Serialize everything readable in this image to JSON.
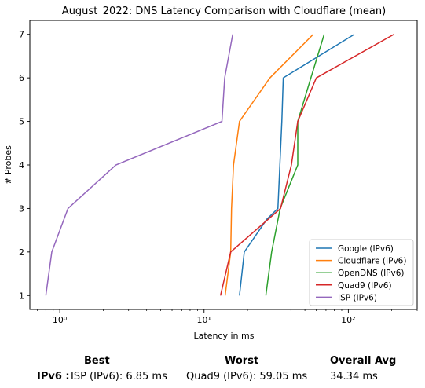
{
  "chart_data": {
    "type": "line",
    "title": "August_2022: DNS Latency Comparison with Cloudflare (mean)",
    "xlabel": "Latency in ms",
    "ylabel": "# Probes",
    "xscale": "log",
    "xlim": [
      0.62,
      300
    ],
    "ylim": [
      0.68,
      7.32
    ],
    "xticks": [
      {
        "value": 1,
        "label": "10⁰"
      },
      {
        "value": 10,
        "label": "10¹"
      },
      {
        "value": 100,
        "label": "10²"
      }
    ],
    "yticks": [
      1,
      2,
      3,
      4,
      5,
      6,
      7
    ],
    "grid": false,
    "legend_position": "lower-right",
    "series": [
      {
        "name": "Google (IPv6)",
        "color": "#1f77b4",
        "points": [
          [
            17.6,
            1
          ],
          [
            19.0,
            2
          ],
          [
            27.2,
            2.75
          ],
          [
            32.5,
            3
          ],
          [
            34.6,
            5
          ],
          [
            35.4,
            6
          ],
          [
            110.0,
            7
          ]
        ]
      },
      {
        "name": "Cloudflare (IPv6)",
        "color": "#ff7f0e",
        "points": [
          [
            14.0,
            1
          ],
          [
            15.3,
            2
          ],
          [
            15.5,
            3
          ],
          [
            16.0,
            4
          ],
          [
            17.6,
            5
          ],
          [
            28.6,
            6
          ],
          [
            57.1,
            7
          ]
        ]
      },
      {
        "name": "OpenDNS (IPv6)",
        "color": "#2ca02c",
        "points": [
          [
            26.8,
            1
          ],
          [
            29.4,
            2
          ],
          [
            33.7,
            3
          ],
          [
            44.6,
            4
          ],
          [
            44.6,
            5
          ],
          [
            55.0,
            6
          ],
          [
            68.0,
            7
          ]
        ]
      },
      {
        "name": "Quad9 (IPv6)",
        "color": "#d62728",
        "points": [
          [
            13.0,
            1
          ],
          [
            15.3,
            2
          ],
          [
            33.9,
            3
          ],
          [
            40.3,
            4
          ],
          [
            44.6,
            5
          ],
          [
            60.0,
            6
          ],
          [
            207.0,
            7
          ]
        ]
      },
      {
        "name": "ISP (IPv6)",
        "color": "#9467bd",
        "points": [
          [
            0.8,
            1
          ],
          [
            0.88,
            2
          ],
          [
            1.14,
            3
          ],
          [
            2.45,
            4
          ],
          [
            13.3,
            5
          ],
          [
            13.9,
            6
          ],
          [
            15.8,
            7
          ]
        ]
      }
    ]
  },
  "stats": {
    "best_header": "Best",
    "worst_header": "Worst",
    "avg_header": "Overall Avg",
    "row_label": "IPv6 :",
    "best_value": "ISP (IPv6): 6.85 ms",
    "worst_value": "Quad9 (IPv6): 59.05 ms",
    "avg_value": "34.34 ms"
  }
}
